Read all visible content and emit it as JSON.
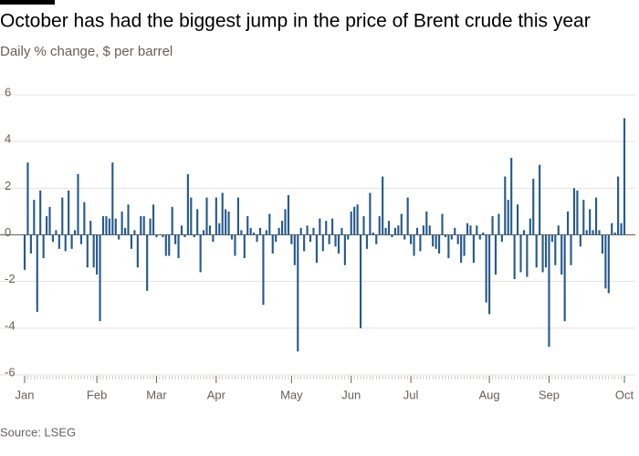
{
  "chart_data": {
    "type": "bar",
    "title": "October has had the biggest jump in the price of Brent crude this year",
    "subtitle": "Daily % change, $ per barrel",
    "source": "Source: LSEG",
    "color": "#265a8c",
    "grid": true,
    "ylim": [
      -6,
      6
    ],
    "yticks": [
      -6,
      -4,
      -2,
      0,
      2,
      4,
      6
    ],
    "categories": [
      "Jan",
      null,
      null,
      null,
      null,
      null,
      null,
      null,
      null,
      null,
      null,
      null,
      null,
      null,
      null,
      null,
      null,
      null,
      null,
      null,
      null,
      null,
      null,
      "Feb",
      null,
      null,
      null,
      null,
      null,
      null,
      null,
      null,
      null,
      null,
      null,
      null,
      null,
      null,
      null,
      null,
      null,
      null,
      "Mar",
      null,
      null,
      null,
      null,
      null,
      null,
      null,
      null,
      null,
      null,
      null,
      null,
      null,
      null,
      null,
      null,
      null,
      null,
      "Apr",
      null,
      null,
      null,
      null,
      null,
      null,
      null,
      null,
      null,
      null,
      null,
      null,
      null,
      null,
      null,
      null,
      null,
      null,
      null,
      null,
      null,
      null,
      null,
      "May",
      null,
      null,
      null,
      null,
      null,
      null,
      null,
      null,
      null,
      null,
      null,
      null,
      null,
      null,
      null,
      null,
      null,
      null,
      "Jun",
      null,
      null,
      null,
      null,
      null,
      null,
      null,
      null,
      null,
      null,
      null,
      null,
      null,
      null,
      null,
      null,
      null,
      null,
      "Jul",
      null,
      null,
      null,
      null,
      null,
      null,
      null,
      null,
      null,
      null,
      null,
      null,
      null,
      null,
      null,
      null,
      null,
      null,
      null,
      null,
      null,
      null,
      null,
      null,
      "Aug",
      null,
      null,
      null,
      null,
      null,
      null,
      null,
      null,
      null,
      null,
      null,
      null,
      null,
      null,
      null,
      null,
      null,
      null,
      "Sep",
      null,
      null,
      null,
      null,
      null,
      null,
      null,
      null,
      null,
      null,
      null,
      null,
      null,
      null,
      null,
      null,
      null,
      null,
      null,
      null,
      null,
      null,
      null,
      "Oct"
    ],
    "values": [
      -1.5,
      3.1,
      -0.8,
      1.5,
      -3.3,
      1.9,
      -1.0,
      0.8,
      1.2,
      -0.3,
      0.2,
      -0.6,
      1.6,
      -0.7,
      1.9,
      -0.6,
      0.2,
      2.6,
      -0.4,
      1.4,
      -1.4,
      0.6,
      -1.4,
      -1.7,
      -3.7,
      0.8,
      0.8,
      0.7,
      3.1,
      0.7,
      -0.2,
      1.0,
      0.3,
      1.3,
      -0.6,
      0.2,
      -1.4,
      0.8,
      0.8,
      -2.4,
      0.7,
      1.3,
      -0.1,
      0.0,
      -0.1,
      -0.9,
      -0.9,
      1.2,
      -0.4,
      -1.0,
      0.4,
      -0.1,
      2.6,
      1.6,
      -0.1,
      1.1,
      -1.6,
      0.2,
      1.6,
      0.4,
      -0.3,
      1.6,
      0.5,
      1.8,
      1.1,
      1.0,
      -0.2,
      -0.9,
      1.6,
      0.2,
      -1.0,
      0.8,
      0.3,
      0.1,
      -0.3,
      0.3,
      -3.0,
      0.2,
      0.9,
      -0.8,
      -0.3,
      0.3,
      0.6,
      1.1,
      1.7,
      -0.4,
      -1.3,
      -5.0,
      0.3,
      -0.7,
      0.4,
      -0.3,
      0.3,
      -1.2,
      0.7,
      -0.7,
      0.6,
      -0.4,
      0.7,
      -0.5,
      -0.8,
      0.3,
      -1.3,
      -0.2,
      1.0,
      1.2,
      1.3,
      -4.0,
      0.8,
      -0.6,
      1.8,
      0.1,
      -0.4,
      0.8,
      2.5,
      0.3,
      0.6,
      -0.1,
      0.3,
      0.4,
      0.9,
      -0.2,
      1.6,
      -0.4,
      -0.9,
      0.3,
      -0.7,
      0.4,
      1.0,
      0.4,
      -0.5,
      -0.6,
      -0.8,
      0.9,
      -0.1,
      -1.0,
      -0.2,
      0.3,
      -0.4,
      -1.2,
      -0.9,
      0.5,
      0.4,
      -1.2,
      0.4,
      -0.2,
      0.1,
      -2.9,
      -3.4,
      0.8,
      -1.7,
      0.9,
      -0.3,
      2.5,
      1.5,
      3.3,
      -1.9,
      1.3,
      -1.6,
      0.2,
      -1.8,
      0.7,
      2.4,
      -1.4,
      3.0,
      -1.6,
      -1.4,
      -4.8,
      -0.3,
      -1.3,
      0.4,
      -1.7,
      -3.7,
      1.0,
      -1.3,
      2.0,
      1.9,
      -0.5,
      1.5,
      0.2,
      1.1,
      0.2,
      1.6,
      0.2,
      -0.8,
      -2.3,
      -2.5,
      0.5,
      0.1,
      2.5,
      0.5,
      5.0
    ]
  }
}
